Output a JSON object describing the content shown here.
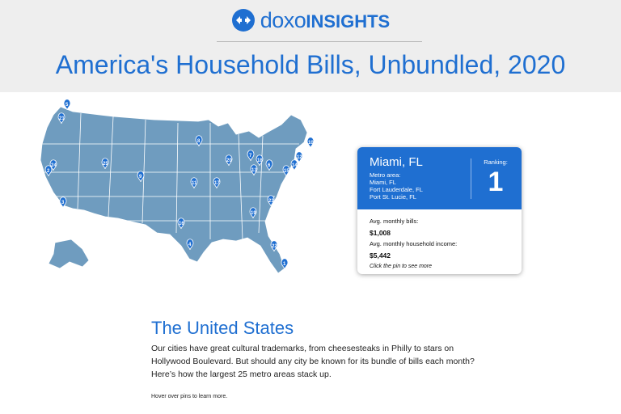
{
  "header": {
    "logo_doxo": "doxo",
    "logo_insights": "INSIGHTS",
    "title": "America's Household Bills, Unbundled, 2020"
  },
  "colors": {
    "brand": "#1f6fd1",
    "map_fill": "#6f9cbf",
    "pin": "#1f6fd1",
    "header_bg": "#eeeeee"
  },
  "map": {
    "pins": [
      "1",
      "2",
      "3",
      "4",
      "5",
      "6",
      "7",
      "8",
      "9",
      "10",
      "11",
      "12",
      "13",
      "14",
      "15",
      "16",
      "17",
      "18",
      "19",
      "20",
      "21",
      "22",
      "23",
      "24",
      "25"
    ]
  },
  "card": {
    "city": "Miami, FL",
    "metro_label": "Metro area:",
    "metro_cities": [
      "Miami, FL",
      "Fort Lauderdale, FL",
      "Port St. Lucie, FL"
    ],
    "ranking_label": "Ranking:",
    "ranking_value": "1",
    "bills_label": "Avg. monthly bills:",
    "bills_value": "$1,008",
    "income_label": "Avg. monthly household income:",
    "income_value": "$5,442",
    "hint": "Click the pin to see more"
  },
  "section": {
    "title": "The United States",
    "paragraph": "Our cities have great cultural trademarks, from cheesesteaks in Philly to stars on Hollywood Boulevard. But should any city be known for its bundle of bills each month? Here’s how the largest 25 metro areas stack up.",
    "hover_note": "Hover over pins to learn more."
  }
}
